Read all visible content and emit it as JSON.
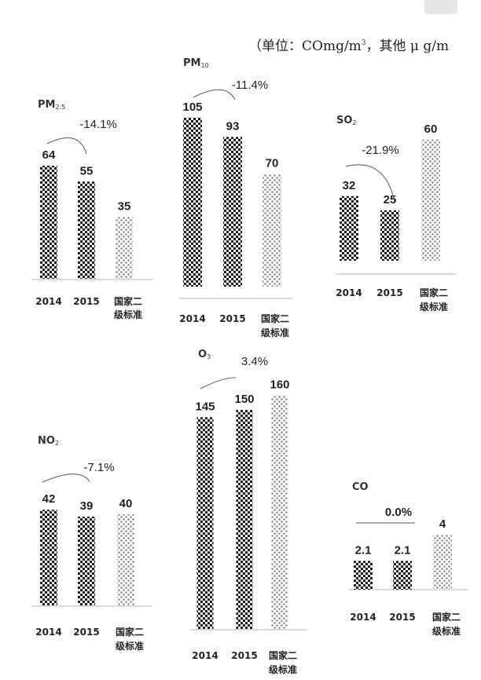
{
  "unit_note": {
    "open": "（单位：",
    "co": "COmg/m",
    "sup": "3",
    "rest": "，其他 μ g/m"
  },
  "colors": {
    "dark_dot": "#111111",
    "light_dot": "#8a8a8a",
    "baseline": "#b5b5b5",
    "arc": "#555555"
  },
  "chart_data": [
    {
      "type": "bar",
      "pollutant": "PM",
      "pollutant_sub": "2.5",
      "categories": [
        "2014",
        "2015",
        "国家二级标准"
      ],
      "values": [
        64,
        55,
        35
      ],
      "labels": [
        "64",
        "55",
        "35"
      ],
      "change": "-14.1%",
      "change_style": "arc"
    },
    {
      "type": "bar",
      "pollutant": "PM",
      "pollutant_sub": "10",
      "categories": [
        "2014",
        "2015",
        "国家二级标准"
      ],
      "values": [
        105,
        93,
        70
      ],
      "labels": [
        "105",
        "93",
        "70"
      ],
      "change": "-11.4%",
      "change_style": "arc"
    },
    {
      "type": "bar",
      "pollutant": "SO",
      "pollutant_sub": "2",
      "categories": [
        "2014",
        "2015",
        "国家二级标准"
      ],
      "values": [
        32,
        25,
        60
      ],
      "labels": [
        "32",
        "25",
        "60"
      ],
      "change": "-21.9%",
      "change_style": "arc"
    },
    {
      "type": "bar",
      "pollutant": "NO",
      "pollutant_sub": "2",
      "categories": [
        "2014",
        "2015",
        "国家二级标准"
      ],
      "values": [
        42,
        39,
        40
      ],
      "labels": [
        "42",
        "39",
        "40"
      ],
      "change": "-7.1%",
      "change_style": "arc"
    },
    {
      "type": "bar",
      "pollutant": "O",
      "pollutant_sub": "3",
      "categories": [
        "2014",
        "2015",
        "国家二级标准"
      ],
      "values": [
        145,
        150,
        160
      ],
      "labels": [
        "145",
        "150",
        "160"
      ],
      "change": "3.4%",
      "change_style": "arc"
    },
    {
      "type": "bar",
      "pollutant": "CO",
      "pollutant_sub": "",
      "categories": [
        "2014",
        "2015",
        "国家二级标准"
      ],
      "values": [
        2.1,
        2.1,
        4
      ],
      "labels": [
        "2.1",
        "2.1",
        "4"
      ],
      "change": "0.0%",
      "change_style": "line"
    }
  ]
}
